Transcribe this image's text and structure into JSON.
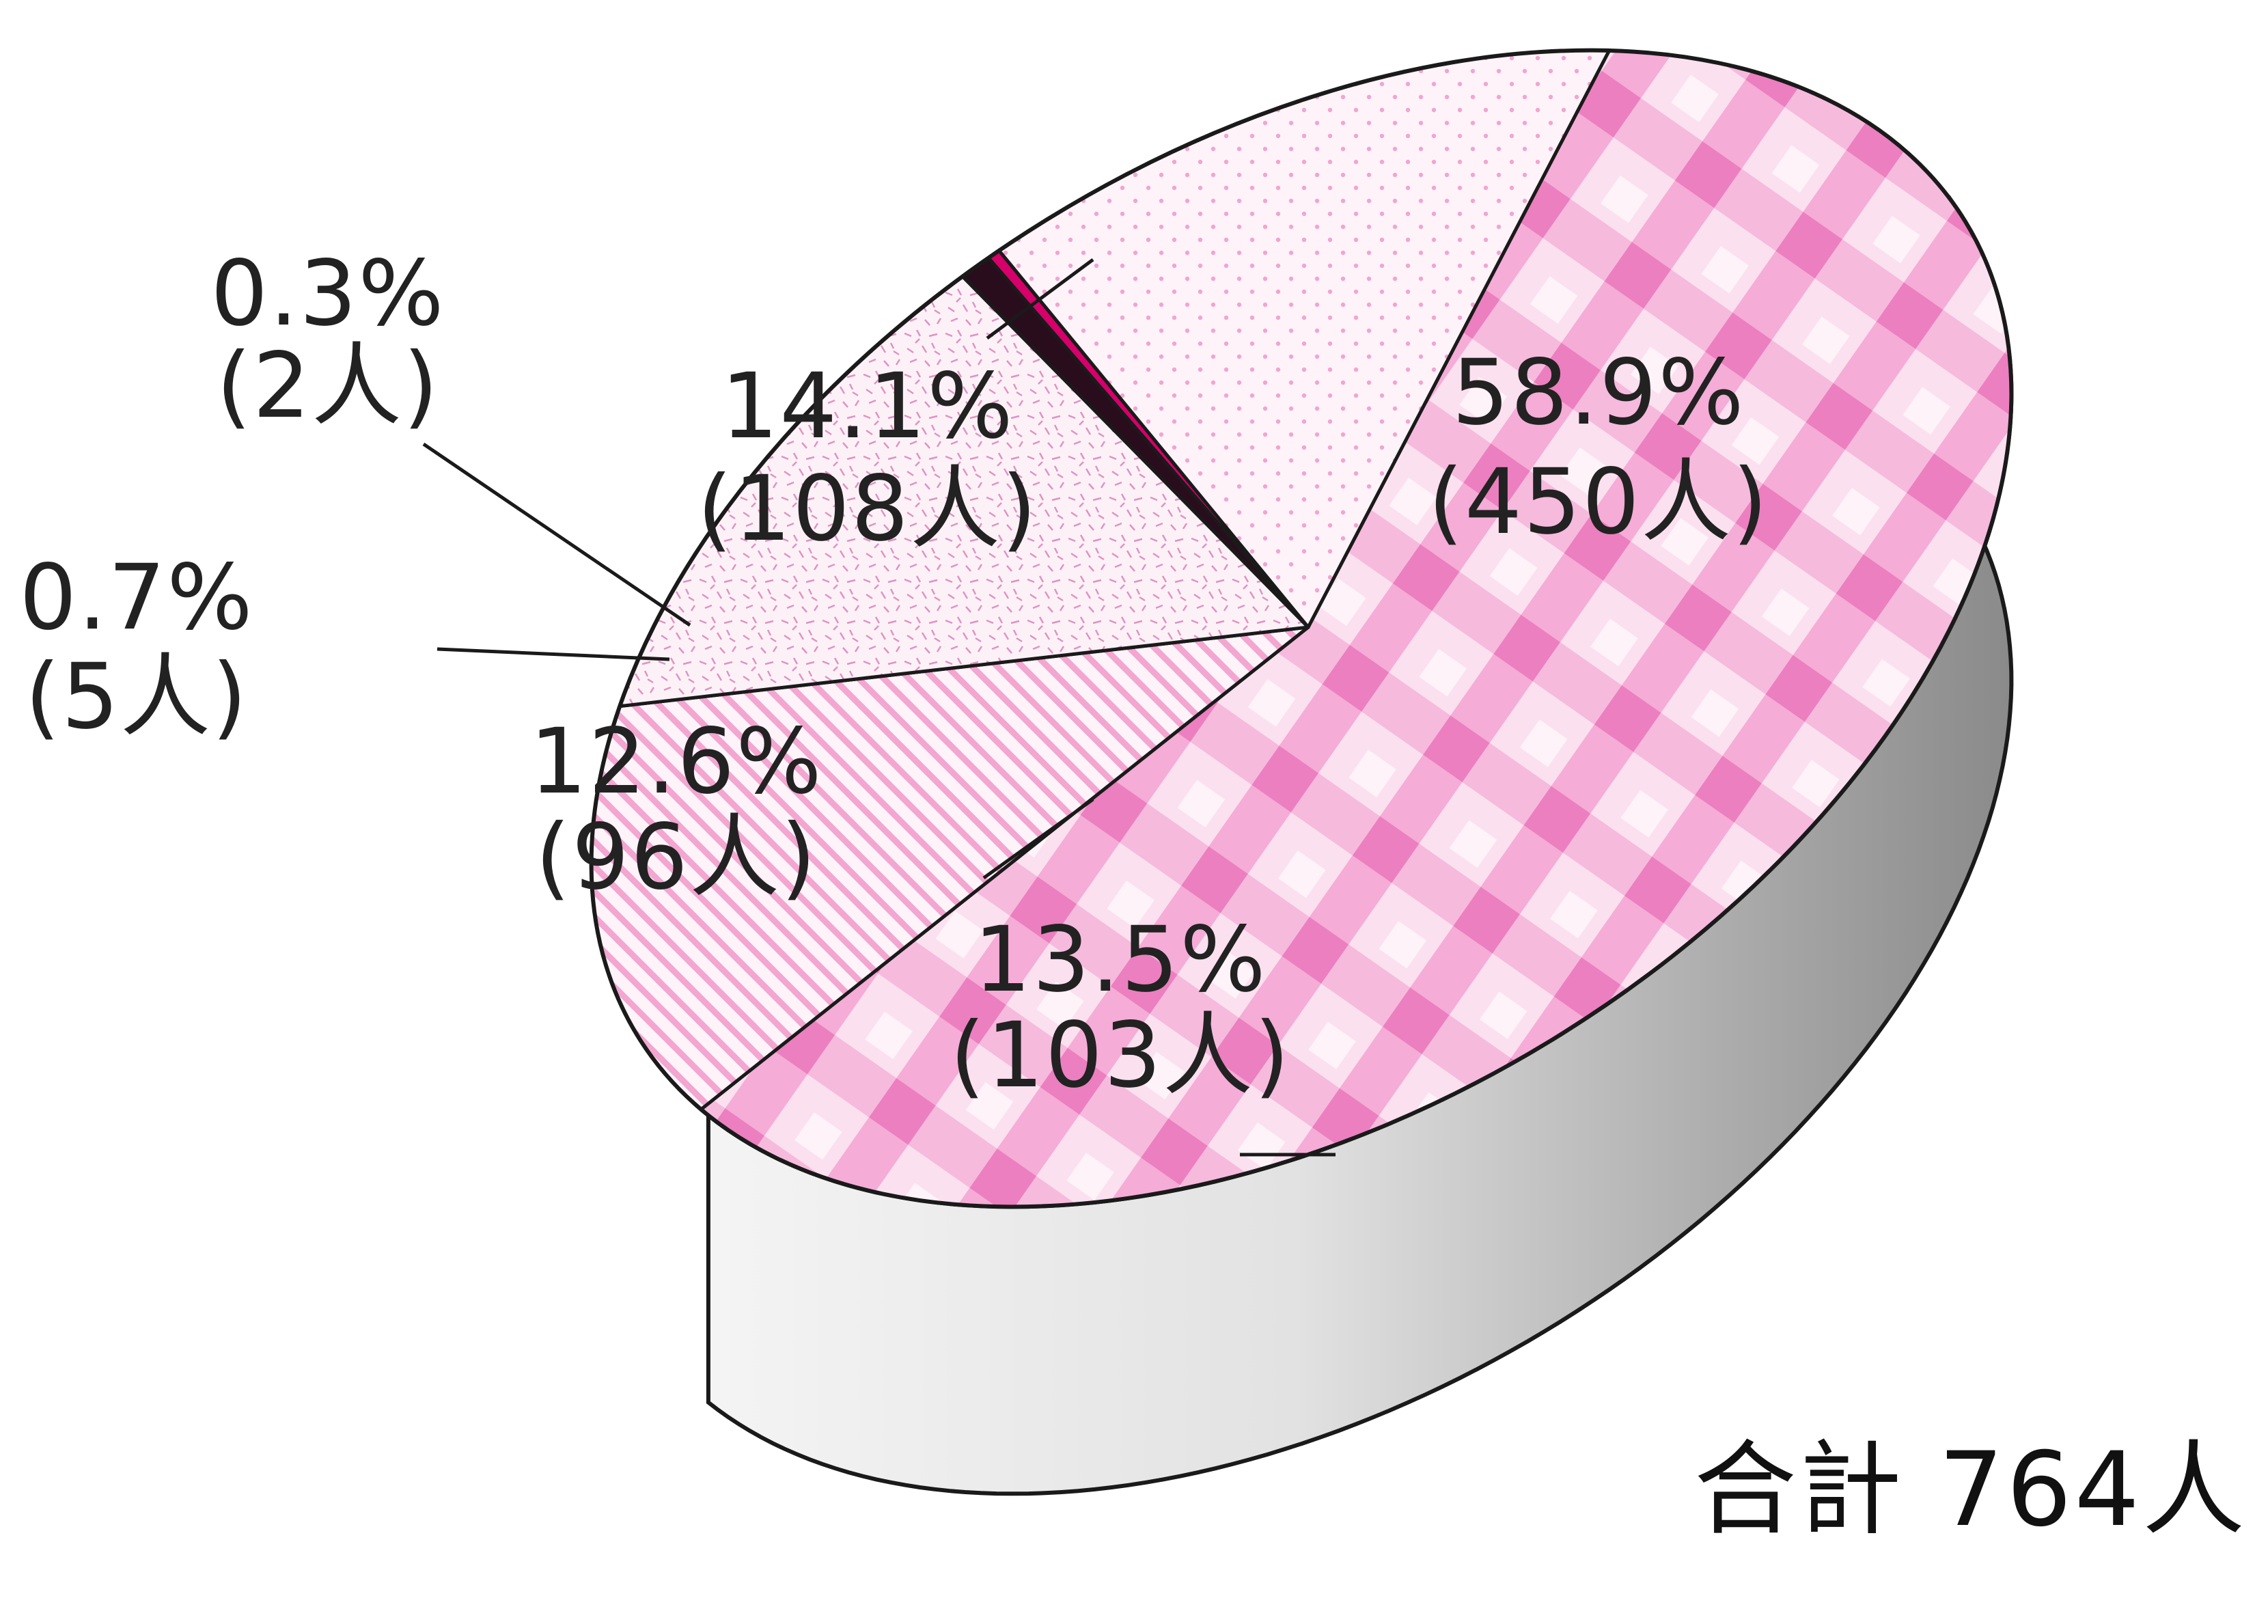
{
  "chart_data": {
    "type": "pie",
    "style": "3d",
    "slices": [
      {
        "percent": "58.9%",
        "count": "(450人)",
        "value": 450,
        "pattern": "checker",
        "color": "#f08cc6"
      },
      {
        "percent": "13.5%",
        "count": "(103人)",
        "value": 103,
        "pattern": "stripes",
        "color": "#f2a6d0"
      },
      {
        "percent": "12.6%",
        "count": "(96人)",
        "value": 96,
        "pattern": "speckle",
        "color": "#e7a1c8"
      },
      {
        "percent": "0.7%",
        "count": "(5人)",
        "value": 5,
        "pattern": "solid",
        "color": "#2a0d1c"
      },
      {
        "percent": "0.3%",
        "count": "(2人)",
        "value": 2,
        "pattern": "solid",
        "color": "#d6006a"
      },
      {
        "percent": "14.1%",
        "count": "(108人)",
        "value": 108,
        "pattern": "dots",
        "color": "#f1a5cf"
      }
    ],
    "total_label": "合計",
    "total_value": "764人",
    "side_color": "#bdbdbd"
  }
}
